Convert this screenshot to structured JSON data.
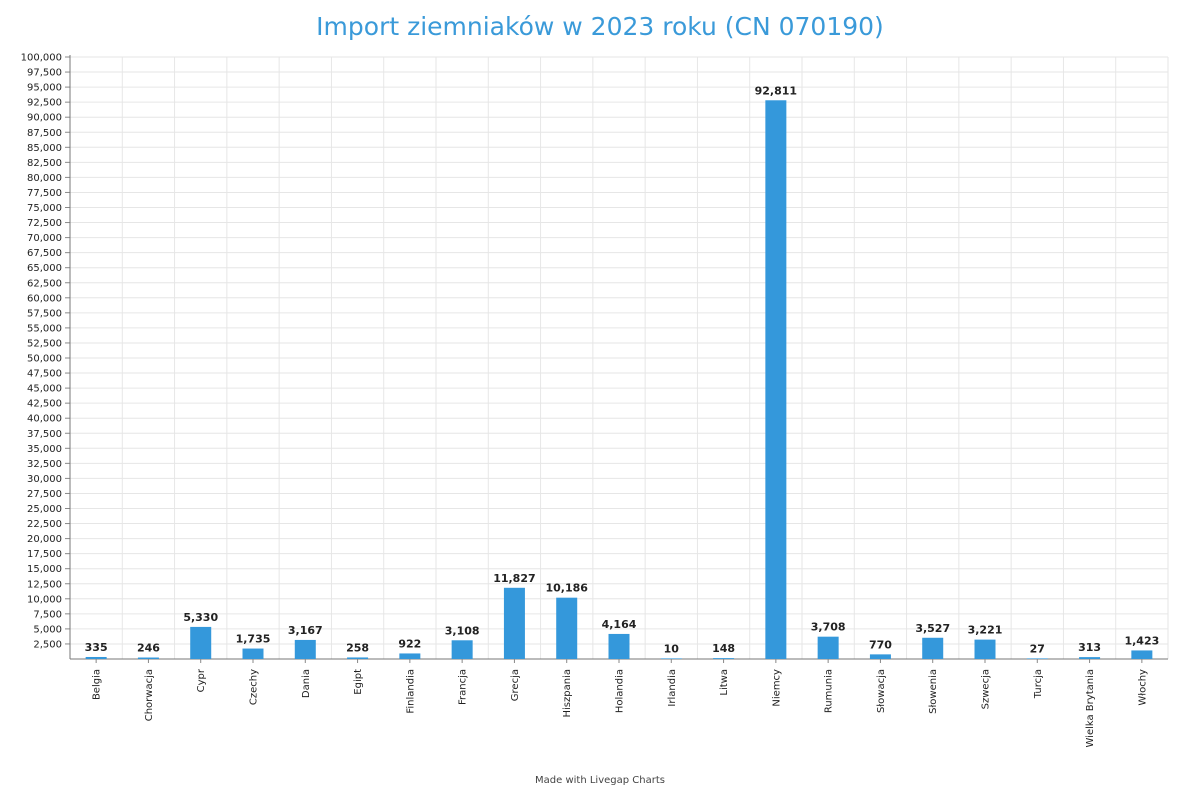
{
  "chart_data": {
    "type": "bar",
    "title": "Import ziemniaków w 2023 roku (CN 070190)",
    "xlabel": "",
    "ylabel": "",
    "ylim": [
      0,
      100000
    ],
    "ytick_step": 2500,
    "grid": true,
    "bar_color": "#3498db",
    "categories": [
      "Belgia",
      "Chorwacja",
      "Cypr",
      "Czechy",
      "Dania",
      "Egipt",
      "Finlandia",
      "Francja",
      "Grecja",
      "Hiszpania",
      "Holandia",
      "Irlandia",
      "Litwa",
      "Niemcy",
      "Rumunia",
      "Słowacja",
      "Słowenia",
      "Szwecja",
      "Turcja",
      "Wielka Brytania",
      "Włochy"
    ],
    "values": [
      335,
      246,
      5330,
      1735,
      3167,
      258,
      922,
      3108,
      11827,
      10186,
      4164,
      10,
      148,
      92811,
      3708,
      770,
      3527,
      3221,
      27,
      313,
      1423
    ],
    "value_labels": [
      "335",
      "246",
      "5,330",
      "1,735",
      "3,167",
      "258",
      "922",
      "3,108",
      "11,827",
      "10,186",
      "4,164",
      "10",
      "148",
      "92,811",
      "3,708",
      "770",
      "3,527",
      "3,221",
      "27",
      "313",
      "1,423"
    ]
  },
  "footer": "Made with Livegap Charts"
}
